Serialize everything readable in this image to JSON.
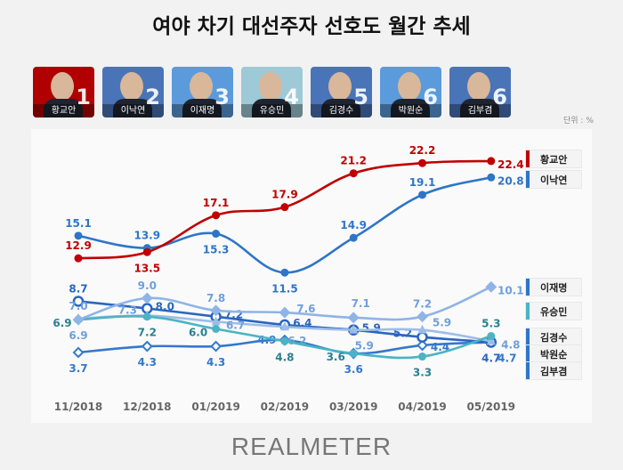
{
  "title": "여야 차기 대선주자 선호도 월간 추세",
  "unit": "단위 : %",
  "brand": "REALMETER",
  "candidates": [
    {
      "name": "황교안",
      "rank": "1",
      "color": "#b00000"
    },
    {
      "name": "이낙연",
      "rank": "2",
      "color": "#4a74b8"
    },
    {
      "name": "이재명",
      "rank": "3",
      "color": "#5b9bdc"
    },
    {
      "name": "유승민",
      "rank": "4",
      "color": "#9ec9d6"
    },
    {
      "name": "김경수",
      "rank": "5",
      "color": "#4a74b8"
    },
    {
      "name": "박원순",
      "rank": "6",
      "color": "#5b9bdc"
    },
    {
      "name": "김부겸",
      "rank": "6",
      "color": "#4a74b8"
    }
  ],
  "chart_data": {
    "type": "line",
    "title": "여야 차기 대선주자 선호도 월간 추세",
    "ylabel": "단위 : %",
    "categories": [
      "11/2018",
      "12/2018",
      "01/2019",
      "02/2019",
      "03/2019",
      "04/2019",
      "05/2019"
    ],
    "series": [
      {
        "name": "황교안",
        "color": "#c00000",
        "label_color": "#c00000",
        "marker": "circle",
        "values": [
          12.9,
          13.5,
          17.1,
          17.9,
          21.2,
          22.2,
          22.4
        ]
      },
      {
        "name": "이낙연",
        "color": "#2e75c8",
        "label_color": "#2e75c8",
        "marker": "circle",
        "values": [
          15.1,
          13.9,
          15.3,
          11.5,
          14.9,
          19.1,
          20.8
        ]
      },
      {
        "name": "이재명",
        "color": "#8fb4e6",
        "label_color": "#6f9fdc",
        "marker": "diamond",
        "values": [
          6.9,
          9.0,
          7.8,
          7.6,
          7.1,
          7.2,
          10.1
        ]
      },
      {
        "name": "유승민",
        "color": "#4ab4c4",
        "label_color": "#2a8090",
        "marker": "circle",
        "values": [
          6.9,
          7.2,
          6.0,
          4.8,
          3.6,
          3.3,
          5.3
        ]
      },
      {
        "name": "김경수",
        "color": "#9dbde8",
        "label_color": "#6f9fdc",
        "marker": "triangle",
        "values": [
          7.0,
          7.3,
          6.7,
          6.2,
          5.9,
          5.9,
          4.8
        ]
      },
      {
        "name": "박원순",
        "color": "#2a66c0",
        "label_color": "#2a66c0",
        "marker": "open-circle",
        "values": [
          8.7,
          8.0,
          7.2,
          6.4,
          5.9,
          5.2,
          4.7
        ]
      },
      {
        "name": "김부겸",
        "color": "#3478cc",
        "label_color": "#3478cc",
        "marker": "open-diamond",
        "values": [
          3.7,
          4.3,
          4.3,
          4.9,
          3.6,
          4.4,
          4.7
        ]
      }
    ],
    "legend": [
      {
        "name": "황교안",
        "color": "#c00000"
      },
      {
        "name": "이낙연",
        "color": "#2e75c8"
      },
      {
        "name": "이재명",
        "color": "#2e75c8"
      },
      {
        "name": "유승민",
        "color": "#4ab4c4"
      },
      {
        "name": "김경수",
        "color": "#2e75c8"
      },
      {
        "name": "박원순",
        "color": "#2e75c8"
      },
      {
        "name": "김부겸",
        "color": "#2e75c8"
      }
    ]
  }
}
